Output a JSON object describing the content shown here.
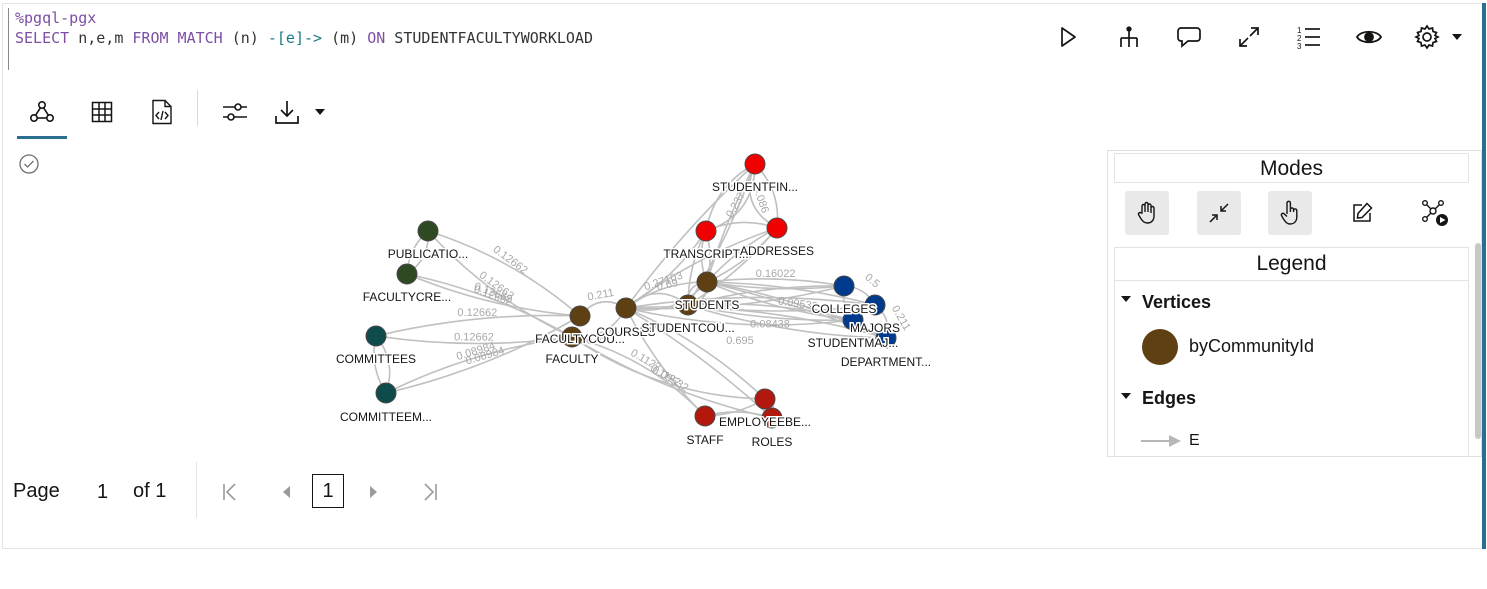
{
  "code": {
    "magic": "%pgql-pgx",
    "query_parts": [
      "SELECT",
      " n,e,m ",
      "FROM MATCH",
      " (n) ",
      "-[e]->",
      " (m) ",
      "ON",
      " STUDENTFACULTYWORKLOAD"
    ]
  },
  "toolbar": {
    "buttons": [
      "run-icon",
      "tree-icon",
      "comments-icon",
      "expand-icon",
      "numbered-list-icon",
      "eye-icon",
      "gear-icon"
    ]
  },
  "view_tabs": [
    "graph-view-icon",
    "table-view-icon",
    "code-view-icon",
    "settings-sliders-icon",
    "download-icon"
  ],
  "panel": {
    "modes_title": "Modes",
    "mode_buttons": [
      "hand-icon",
      "collapse-icon",
      "pointer-hand-icon",
      "edit-icon",
      "network-play-icon"
    ],
    "legend_title": "Legend",
    "vertices_title": "Vertices",
    "vertex_legend_label": "byCommunityId",
    "vertex_legend_color": "#5e4012",
    "edges_title": "Edges",
    "edge_legend_label": "E"
  },
  "pager": {
    "page_label": "Page",
    "page_value": "1",
    "of_label": "of 1",
    "current": "1"
  },
  "graph": {
    "colors": {
      "darkgreen": "#2f4a22",
      "teal": "#0e4c4c",
      "brown": "#5e4012",
      "red": "#f00000",
      "blue": "#003a8c",
      "darkred": "#b3180f",
      "edge": "#c0c0c0"
    },
    "node_labels": [
      "PUBLICATIO...",
      "FACULTYCRE...",
      "COMMITTEES",
      "COMMITTEEM...",
      "FACULTYCOU...",
      "FACULTY",
      "COURSES",
      "STUDENTCOU...",
      "STUDENTS",
      "STUDENTFIN...",
      "TRANSCRIPT...",
      "ADDRESSES",
      "COLLEGES",
      "MAJORS",
      "STUDENTMAJ...",
      "DEPARTMENT...",
      "EMPLOYEEBE...",
      "STAFF",
      "ROLES"
    ],
    "edge_labels": [
      "0.12662",
      "0.12662",
      "0.12662",
      "0.12662",
      "0.12662",
      "0.12662",
      "0.08984",
      "0.08984",
      "0.1122",
      "0.1122",
      "0.09532",
      "0.27103",
      "0.16022",
      "0.08438",
      "0.09532",
      "0.237",
      "0.086",
      "0.5",
      "0.211",
      "0.211",
      "0.4375",
      "0.69",
      "0.695"
    ]
  }
}
